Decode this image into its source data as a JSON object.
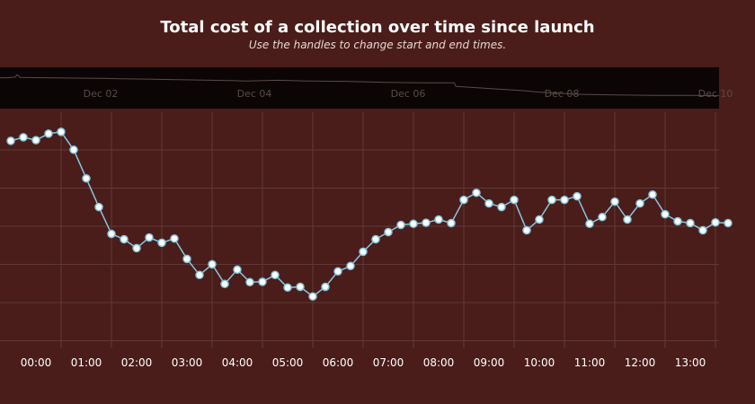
{
  "chart_data": {
    "type": "line",
    "title": "Total cost of a collection over time since launch",
    "subtitle": "Use the handles to change start and end times.",
    "x_tick_labels": [
      "00:00",
      "01:00",
      "02:00",
      "03:00",
      "04:00",
      "05:00",
      "06:00",
      "07:00",
      "08:00",
      "09:00",
      "10:00",
      "11:00",
      "12:00",
      "13:00"
    ],
    "navigator_labels": [
      "Dec 02",
      "Dec 04",
      "Dec 06",
      "Dec 08",
      "Dec 10"
    ],
    "grid": true,
    "legend": "none",
    "x_unit": "hours",
    "ylim": [
      0,
      6.6
    ],
    "series": [
      {
        "points": [
          [
            -0.5,
            5.8
          ],
          [
            -0.25,
            5.9
          ],
          [
            0.0,
            5.82
          ],
          [
            0.25,
            6.0
          ],
          [
            0.5,
            6.05
          ],
          [
            0.75,
            5.55
          ],
          [
            1.0,
            4.75
          ],
          [
            1.25,
            3.95
          ],
          [
            1.5,
            3.2
          ],
          [
            1.75,
            3.05
          ],
          [
            2.0,
            2.8
          ],
          [
            2.25,
            3.1
          ],
          [
            2.5,
            2.95
          ],
          [
            2.75,
            3.07
          ],
          [
            3.0,
            2.5
          ],
          [
            3.25,
            2.05
          ],
          [
            3.5,
            2.35
          ],
          [
            3.75,
            1.8
          ],
          [
            4.0,
            2.2
          ],
          [
            4.25,
            1.85
          ],
          [
            4.5,
            1.86
          ],
          [
            4.75,
            2.05
          ],
          [
            5.0,
            1.7
          ],
          [
            5.25,
            1.72
          ],
          [
            5.5,
            1.45
          ],
          [
            5.75,
            1.72
          ],
          [
            6.0,
            2.15
          ],
          [
            6.25,
            2.3
          ],
          [
            6.5,
            2.7
          ],
          [
            6.75,
            3.05
          ],
          [
            7.0,
            3.25
          ],
          [
            7.25,
            3.45
          ],
          [
            7.5,
            3.48
          ],
          [
            7.75,
            3.51
          ],
          [
            8.0,
            3.6
          ],
          [
            8.25,
            3.5
          ],
          [
            8.5,
            4.15
          ],
          [
            8.75,
            4.35
          ],
          [
            9.0,
            4.05
          ],
          [
            9.25,
            3.95
          ],
          [
            9.5,
            4.15
          ],
          [
            9.75,
            3.3
          ],
          [
            10.0,
            3.6
          ],
          [
            10.25,
            4.15
          ],
          [
            10.5,
            4.15
          ],
          [
            10.75,
            4.25
          ],
          [
            11.0,
            3.48
          ],
          [
            11.25,
            3.67
          ],
          [
            11.5,
            4.1
          ],
          [
            11.75,
            3.6
          ],
          [
            12.0,
            4.05
          ],
          [
            12.25,
            4.3
          ],
          [
            12.5,
            3.75
          ],
          [
            12.75,
            3.55
          ],
          [
            13.0,
            3.5
          ],
          [
            13.25,
            3.3
          ],
          [
            13.5,
            3.52
          ],
          [
            13.75,
            3.5
          ]
        ]
      }
    ],
    "navigator_series": [
      [
        0.0,
        0.24
      ],
      [
        0.1,
        0.24
      ],
      [
        0.2,
        0.22
      ],
      [
        0.22,
        0.16
      ],
      [
        0.24,
        0.18
      ],
      [
        0.26,
        0.23
      ],
      [
        0.6,
        0.24
      ],
      [
        1.0,
        0.25
      ],
      [
        1.4,
        0.26
      ],
      [
        1.6,
        0.27
      ],
      [
        2.0,
        0.28
      ],
      [
        2.2,
        0.29
      ],
      [
        2.5,
        0.3
      ],
      [
        3.0,
        0.32
      ],
      [
        3.2,
        0.33
      ],
      [
        3.6,
        0.31
      ],
      [
        4.0,
        0.33
      ],
      [
        4.5,
        0.34
      ],
      [
        5.0,
        0.37
      ],
      [
        5.5,
        0.38
      ],
      [
        5.9,
        0.38
      ],
      [
        5.92,
        0.48
      ],
      [
        6.2,
        0.52
      ],
      [
        6.8,
        0.6
      ],
      [
        7.0,
        0.64
      ],
      [
        7.5,
        0.7
      ],
      [
        8.0,
        0.72
      ],
      [
        8.5,
        0.73
      ],
      [
        9.0,
        0.73
      ],
      [
        9.34,
        0.74
      ]
    ],
    "navigator_xrange": [
      0,
      9.34
    ]
  },
  "colors": {
    "background": "#4a1d1a",
    "line": "#86c6de",
    "marker_fill": "#ffffff",
    "navigator_bg": "#0b0605",
    "grid": "#5f3a37"
  }
}
